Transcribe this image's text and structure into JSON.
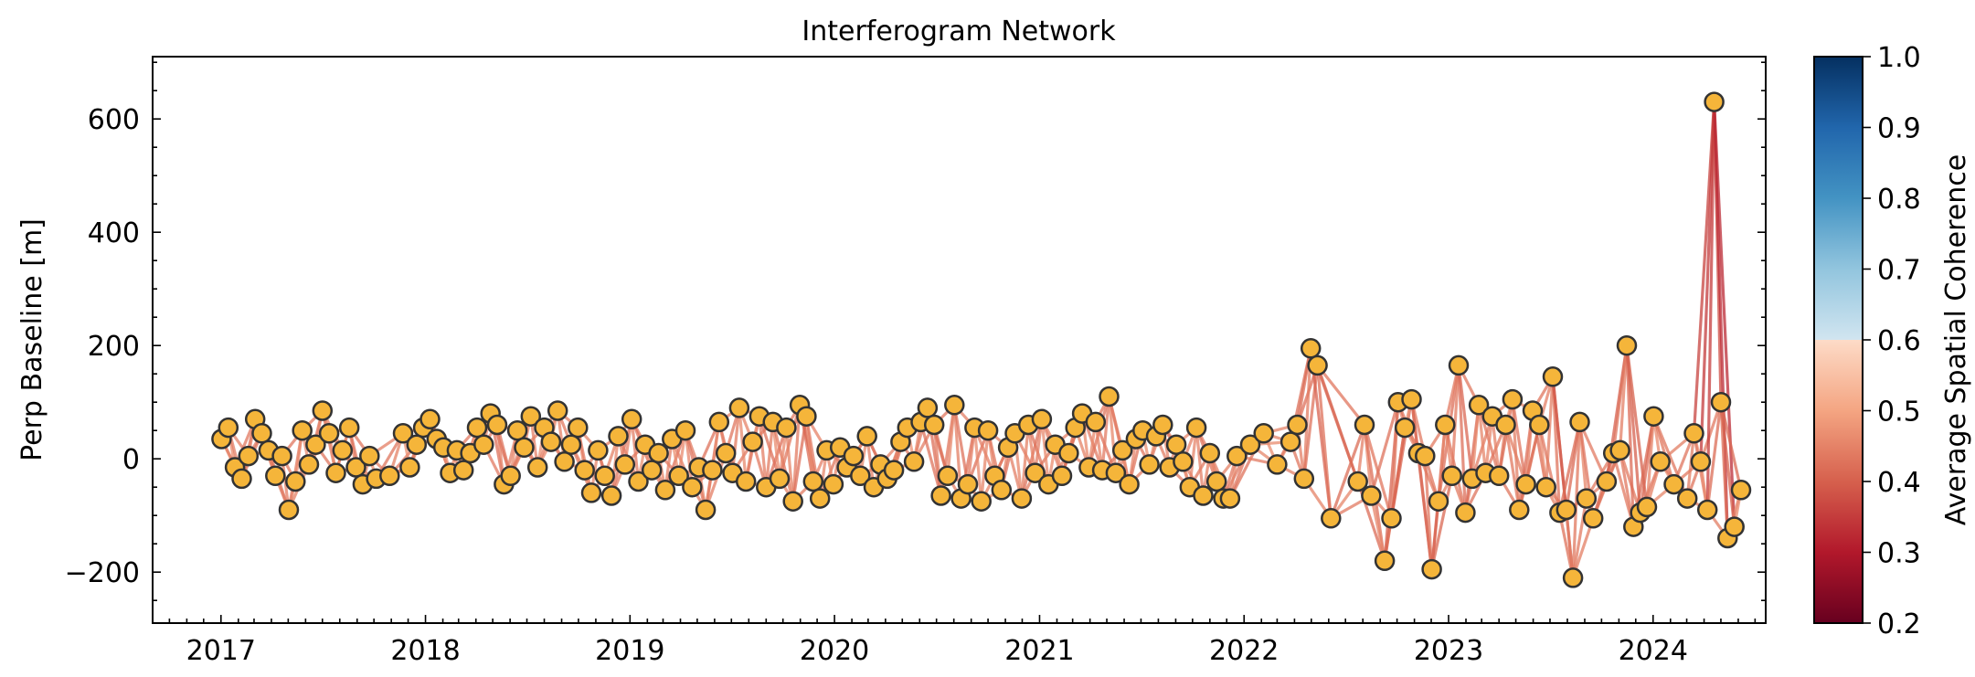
{
  "chart_data": {
    "type": "scatter",
    "title": "Interferogram Network",
    "xlabel": "",
    "ylabel": "Perp Baseline [m]",
    "x_ticks": [
      "2017",
      "2018",
      "2019",
      "2020",
      "2021",
      "2022",
      "2023",
      "2024"
    ],
    "x_range": [
      "2016-09-01",
      "2024-07-20"
    ],
    "y_ticks": [
      "600",
      "400",
      "200",
      "0",
      "−200"
    ],
    "y_tick_values": [
      600,
      400,
      200,
      0,
      -200
    ],
    "ylim": [
      -290,
      710
    ],
    "colorbar": {
      "label": "Average Spatial Coherence",
      "range": [
        0.2,
        1.0
      ],
      "ticks": [
        "1.0",
        "0.9",
        "0.8",
        "0.7",
        "0.6",
        "0.5",
        "0.4",
        "0.3",
        "0.2"
      ],
      "tick_values": [
        1.0,
        0.9,
        0.8,
        0.7,
        0.6,
        0.5,
        0.4,
        0.3,
        0.2
      ],
      "colormap": "RdBu",
      "masked_above": 0.7
    },
    "point_style": {
      "fill": "#f5b53a",
      "edge": "#333333"
    },
    "acquisitions": [
      {
        "date": "2017-01-02",
        "bperp": 35
      },
      {
        "date": "2017-01-14",
        "bperp": 55
      },
      {
        "date": "2017-01-26",
        "bperp": -15
      },
      {
        "date": "2017-02-07",
        "bperp": -35
      },
      {
        "date": "2017-02-19",
        "bperp": 5
      },
      {
        "date": "2017-03-03",
        "bperp": 70
      },
      {
        "date": "2017-03-15",
        "bperp": 45
      },
      {
        "date": "2017-03-27",
        "bperp": 15
      },
      {
        "date": "2017-04-08",
        "bperp": -30
      },
      {
        "date": "2017-04-20",
        "bperp": 5
      },
      {
        "date": "2017-05-02",
        "bperp": -90
      },
      {
        "date": "2017-05-14",
        "bperp": -40
      },
      {
        "date": "2017-05-26",
        "bperp": 50
      },
      {
        "date": "2017-06-07",
        "bperp": -10
      },
      {
        "date": "2017-06-19",
        "bperp": 25
      },
      {
        "date": "2017-07-01",
        "bperp": 85
      },
      {
        "date": "2017-07-13",
        "bperp": 45
      },
      {
        "date": "2017-07-25",
        "bperp": -25
      },
      {
        "date": "2017-08-06",
        "bperp": 15
      },
      {
        "date": "2017-08-18",
        "bperp": 55
      },
      {
        "date": "2017-08-30",
        "bperp": -15
      },
      {
        "date": "2017-09-11",
        "bperp": -45
      },
      {
        "date": "2017-09-23",
        "bperp": 5
      },
      {
        "date": "2017-10-05",
        "bperp": -35
      },
      {
        "date": "2017-10-29",
        "bperp": -30
      },
      {
        "date": "2017-11-22",
        "bperp": 45
      },
      {
        "date": "2017-12-04",
        "bperp": -15
      },
      {
        "date": "2017-12-16",
        "bperp": 25
      },
      {
        "date": "2017-12-28",
        "bperp": 55
      },
      {
        "date": "2018-01-09",
        "bperp": 70
      },
      {
        "date": "2018-01-21",
        "bperp": 35
      },
      {
        "date": "2018-02-02",
        "bperp": 20
      },
      {
        "date": "2018-02-14",
        "bperp": -25
      },
      {
        "date": "2018-02-26",
        "bperp": 15
      },
      {
        "date": "2018-03-10",
        "bperp": -20
      },
      {
        "date": "2018-03-22",
        "bperp": 10
      },
      {
        "date": "2018-04-03",
        "bperp": 55
      },
      {
        "date": "2018-04-15",
        "bperp": 25
      },
      {
        "date": "2018-04-27",
        "bperp": 80
      },
      {
        "date": "2018-05-09",
        "bperp": 60
      },
      {
        "date": "2018-05-21",
        "bperp": -45
      },
      {
        "date": "2018-06-02",
        "bperp": -30
      },
      {
        "date": "2018-06-14",
        "bperp": 50
      },
      {
        "date": "2018-06-26",
        "bperp": 20
      },
      {
        "date": "2018-07-08",
        "bperp": 75
      },
      {
        "date": "2018-07-20",
        "bperp": -15
      },
      {
        "date": "2018-08-01",
        "bperp": 55
      },
      {
        "date": "2018-08-13",
        "bperp": 30
      },
      {
        "date": "2018-08-25",
        "bperp": 85
      },
      {
        "date": "2018-09-06",
        "bperp": -5
      },
      {
        "date": "2018-09-18",
        "bperp": 25
      },
      {
        "date": "2018-09-30",
        "bperp": 55
      },
      {
        "date": "2018-10-12",
        "bperp": -20
      },
      {
        "date": "2018-10-24",
        "bperp": -60
      },
      {
        "date": "2018-11-05",
        "bperp": 15
      },
      {
        "date": "2018-11-17",
        "bperp": -30
      },
      {
        "date": "2018-11-29",
        "bperp": -65
      },
      {
        "date": "2018-12-11",
        "bperp": 40
      },
      {
        "date": "2018-12-23",
        "bperp": -10
      },
      {
        "date": "2019-01-04",
        "bperp": 70
      },
      {
        "date": "2019-01-16",
        "bperp": -40
      },
      {
        "date": "2019-01-28",
        "bperp": 25
      },
      {
        "date": "2019-02-09",
        "bperp": -20
      },
      {
        "date": "2019-02-21",
        "bperp": 10
      },
      {
        "date": "2019-03-05",
        "bperp": -55
      },
      {
        "date": "2019-03-17",
        "bperp": 35
      },
      {
        "date": "2019-03-29",
        "bperp": -30
      },
      {
        "date": "2019-04-10",
        "bperp": 50
      },
      {
        "date": "2019-04-22",
        "bperp": -50
      },
      {
        "date": "2019-05-04",
        "bperp": -15
      },
      {
        "date": "2019-05-16",
        "bperp": -90
      },
      {
        "date": "2019-05-28",
        "bperp": -20
      },
      {
        "date": "2019-06-09",
        "bperp": 65
      },
      {
        "date": "2019-06-21",
        "bperp": 10
      },
      {
        "date": "2019-07-03",
        "bperp": -25
      },
      {
        "date": "2019-07-15",
        "bperp": 90
      },
      {
        "date": "2019-07-27",
        "bperp": -40
      },
      {
        "date": "2019-08-08",
        "bperp": 30
      },
      {
        "date": "2019-08-20",
        "bperp": 75
      },
      {
        "date": "2019-09-01",
        "bperp": -50
      },
      {
        "date": "2019-09-13",
        "bperp": 65
      },
      {
        "date": "2019-09-25",
        "bperp": -35
      },
      {
        "date": "2019-10-07",
        "bperp": 55
      },
      {
        "date": "2019-10-19",
        "bperp": -75
      },
      {
        "date": "2019-10-31",
        "bperp": 95
      },
      {
        "date": "2019-11-12",
        "bperp": 75
      },
      {
        "date": "2019-11-24",
        "bperp": -40
      },
      {
        "date": "2019-12-06",
        "bperp": -70
      },
      {
        "date": "2019-12-18",
        "bperp": 15
      },
      {
        "date": "2019-12-30",
        "bperp": -45
      },
      {
        "date": "2020-01-11",
        "bperp": 20
      },
      {
        "date": "2020-01-23",
        "bperp": -15
      },
      {
        "date": "2020-02-04",
        "bperp": 5
      },
      {
        "date": "2020-02-16",
        "bperp": -30
      },
      {
        "date": "2020-02-28",
        "bperp": 40
      },
      {
        "date": "2020-03-11",
        "bperp": -50
      },
      {
        "date": "2020-03-23",
        "bperp": -10
      },
      {
        "date": "2020-04-04",
        "bperp": -35
      },
      {
        "date": "2020-04-16",
        "bperp": -20
      },
      {
        "date": "2020-04-28",
        "bperp": 30
      },
      {
        "date": "2020-05-10",
        "bperp": 55
      },
      {
        "date": "2020-05-22",
        "bperp": -5
      },
      {
        "date": "2020-06-03",
        "bperp": 65
      },
      {
        "date": "2020-06-15",
        "bperp": 90
      },
      {
        "date": "2020-06-27",
        "bperp": 60
      },
      {
        "date": "2020-07-09",
        "bperp": -65
      },
      {
        "date": "2020-07-21",
        "bperp": -30
      },
      {
        "date": "2020-08-02",
        "bperp": 95
      },
      {
        "date": "2020-08-14",
        "bperp": -70
      },
      {
        "date": "2020-08-26",
        "bperp": -45
      },
      {
        "date": "2020-09-07",
        "bperp": 55
      },
      {
        "date": "2020-09-19",
        "bperp": -75
      },
      {
        "date": "2020-10-01",
        "bperp": 50
      },
      {
        "date": "2020-10-13",
        "bperp": -30
      },
      {
        "date": "2020-10-25",
        "bperp": -55
      },
      {
        "date": "2020-11-06",
        "bperp": 20
      },
      {
        "date": "2020-11-18",
        "bperp": 45
      },
      {
        "date": "2020-11-30",
        "bperp": -70
      },
      {
        "date": "2020-12-12",
        "bperp": 60
      },
      {
        "date": "2020-12-24",
        "bperp": -25
      },
      {
        "date": "2021-01-05",
        "bperp": 70
      },
      {
        "date": "2021-01-17",
        "bperp": -45
      },
      {
        "date": "2021-01-29",
        "bperp": 25
      },
      {
        "date": "2021-02-10",
        "bperp": -30
      },
      {
        "date": "2021-02-22",
        "bperp": 10
      },
      {
        "date": "2021-03-06",
        "bperp": 55
      },
      {
        "date": "2021-03-18",
        "bperp": 80
      },
      {
        "date": "2021-03-30",
        "bperp": -15
      },
      {
        "date": "2021-04-11",
        "bperp": 65
      },
      {
        "date": "2021-04-23",
        "bperp": -20
      },
      {
        "date": "2021-05-05",
        "bperp": 110
      },
      {
        "date": "2021-05-17",
        "bperp": -25
      },
      {
        "date": "2021-05-29",
        "bperp": 15
      },
      {
        "date": "2021-06-10",
        "bperp": -45
      },
      {
        "date": "2021-06-22",
        "bperp": 35
      },
      {
        "date": "2021-07-04",
        "bperp": 50
      },
      {
        "date": "2021-07-16",
        "bperp": -10
      },
      {
        "date": "2021-07-28",
        "bperp": 40
      },
      {
        "date": "2021-08-09",
        "bperp": 60
      },
      {
        "date": "2021-08-21",
        "bperp": -15
      },
      {
        "date": "2021-09-02",
        "bperp": 25
      },
      {
        "date": "2021-09-14",
        "bperp": -5
      },
      {
        "date": "2021-09-26",
        "bperp": -50
      },
      {
        "date": "2021-10-08",
        "bperp": 55
      },
      {
        "date": "2021-10-20",
        "bperp": -65
      },
      {
        "date": "2021-11-01",
        "bperp": 10
      },
      {
        "date": "2021-11-13",
        "bperp": -40
      },
      {
        "date": "2021-11-25",
        "bperp": -70
      },
      {
        "date": "2021-12-07",
        "bperp": -70
      },
      {
        "date": "2021-12-19",
        "bperp": 5
      },
      {
        "date": "2022-01-12",
        "bperp": 25
      },
      {
        "date": "2022-02-05",
        "bperp": 45
      },
      {
        "date": "2022-03-01",
        "bperp": -10
      },
      {
        "date": "2022-03-25",
        "bperp": 30
      },
      {
        "date": "2022-04-06",
        "bperp": 60
      },
      {
        "date": "2022-04-18",
        "bperp": -35
      },
      {
        "date": "2022-04-30",
        "bperp": 195
      },
      {
        "date": "2022-05-12",
        "bperp": 165
      },
      {
        "date": "2022-06-05",
        "bperp": -105
      },
      {
        "date": "2022-07-23",
        "bperp": -40
      },
      {
        "date": "2022-08-04",
        "bperp": 60
      },
      {
        "date": "2022-08-16",
        "bperp": -65
      },
      {
        "date": "2022-09-09",
        "bperp": -180
      },
      {
        "date": "2022-09-21",
        "bperp": -105
      },
      {
        "date": "2022-10-03",
        "bperp": 100
      },
      {
        "date": "2022-10-15",
        "bperp": 55
      },
      {
        "date": "2022-10-27",
        "bperp": 105
      },
      {
        "date": "2022-11-08",
        "bperp": 10
      },
      {
        "date": "2022-11-20",
        "bperp": 5
      },
      {
        "date": "2022-12-02",
        "bperp": -195
      },
      {
        "date": "2022-12-14",
        "bperp": -75
      },
      {
        "date": "2022-12-26",
        "bperp": 60
      },
      {
        "date": "2023-01-07",
        "bperp": -30
      },
      {
        "date": "2023-01-19",
        "bperp": 165
      },
      {
        "date": "2023-01-31",
        "bperp": -95
      },
      {
        "date": "2023-02-12",
        "bperp": -35
      },
      {
        "date": "2023-02-24",
        "bperp": 95
      },
      {
        "date": "2023-03-08",
        "bperp": -25
      },
      {
        "date": "2023-03-20",
        "bperp": 75
      },
      {
        "date": "2023-04-01",
        "bperp": -30
      },
      {
        "date": "2023-04-13",
        "bperp": 60
      },
      {
        "date": "2023-04-25",
        "bperp": 105
      },
      {
        "date": "2023-05-07",
        "bperp": -90
      },
      {
        "date": "2023-05-19",
        "bperp": -45
      },
      {
        "date": "2023-05-31",
        "bperp": 85
      },
      {
        "date": "2023-06-12",
        "bperp": 60
      },
      {
        "date": "2023-06-24",
        "bperp": -50
      },
      {
        "date": "2023-07-06",
        "bperp": 145
      },
      {
        "date": "2023-07-18",
        "bperp": -95
      },
      {
        "date": "2023-07-30",
        "bperp": -90
      },
      {
        "date": "2023-08-11",
        "bperp": -210
      },
      {
        "date": "2023-08-23",
        "bperp": 65
      },
      {
        "date": "2023-09-04",
        "bperp": -70
      },
      {
        "date": "2023-09-16",
        "bperp": -105
      },
      {
        "date": "2023-10-10",
        "bperp": -40
      },
      {
        "date": "2023-10-22",
        "bperp": 10
      },
      {
        "date": "2023-11-03",
        "bperp": 15
      },
      {
        "date": "2023-11-15",
        "bperp": 200
      },
      {
        "date": "2023-11-27",
        "bperp": -120
      },
      {
        "date": "2023-12-09",
        "bperp": -95
      },
      {
        "date": "2023-12-21",
        "bperp": -85
      },
      {
        "date": "2024-01-02",
        "bperp": 75
      },
      {
        "date": "2024-01-14",
        "bperp": -5
      },
      {
        "date": "2024-02-07",
        "bperp": -45
      },
      {
        "date": "2024-03-02",
        "bperp": -70
      },
      {
        "date": "2024-03-14",
        "bperp": 45
      },
      {
        "date": "2024-03-26",
        "bperp": -5
      },
      {
        "date": "2024-04-07",
        "bperp": -90
      },
      {
        "date": "2024-04-19",
        "bperp": 630
      },
      {
        "date": "2024-05-01",
        "bperp": 100
      },
      {
        "date": "2024-05-13",
        "bperp": -140
      },
      {
        "date": "2024-05-25",
        "bperp": -120
      },
      {
        "date": "2024-06-06",
        "bperp": -55
      }
    ]
  }
}
